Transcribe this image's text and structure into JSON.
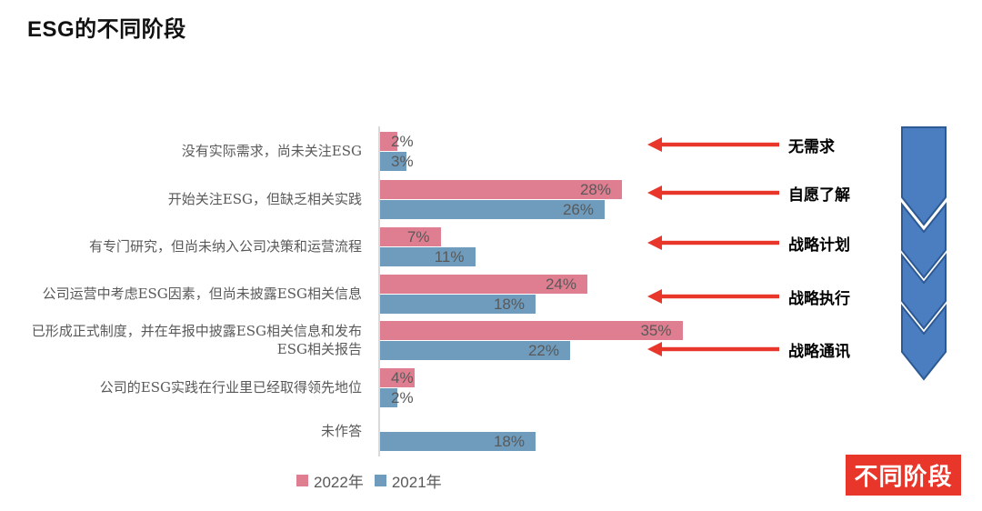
{
  "chart_data": {
    "type": "bar",
    "orientation": "horizontal",
    "title": "ESG的不同阶段",
    "categories": [
      "没有实际需求，尚未关注ESG",
      "开始关注ESG，但缺乏相关实践",
      "有专门研究，但尚未纳入公司决策和运营流程",
      "公司运营中考虑ESG因素，但尚未披露ESG相关信息",
      "已形成正式制度，并在年报中披露ESG相关信息和发布ESG相关报告",
      "公司的ESG实践在行业里已经取得领先地位",
      "未作答"
    ],
    "series": [
      {
        "name": "2022年",
        "color": "#df7e90",
        "values": [
          2,
          28,
          7,
          24,
          35,
          4,
          null
        ]
      },
      {
        "name": "2021年",
        "color": "#6f9cbd",
        "values": [
          3,
          26,
          11,
          18,
          22,
          2,
          18
        ]
      }
    ],
    "unit": "%",
    "xlim": [
      0,
      36
    ],
    "grid": false,
    "legend_position": "bottom"
  },
  "stages": {
    "items": [
      "无需求",
      "自愿了解",
      "战略计划",
      "战略执行",
      "战略通讯"
    ],
    "arrow_color": "#e8362b"
  },
  "flow_chevron": {
    "direction": "down",
    "segments": 4,
    "fill": "#4a7ec0",
    "border": "#2d5a94"
  },
  "badge": {
    "label": "不同阶段",
    "bg": "#e8362b",
    "color": "#ffffff"
  }
}
